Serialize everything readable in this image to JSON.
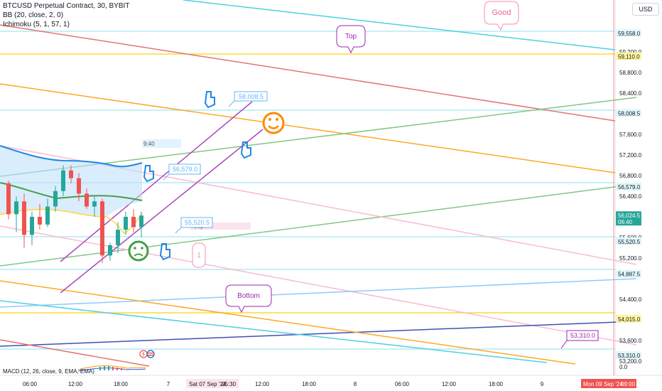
{
  "header": {
    "symbol_line": "BTCUSD Perpetual Contract, 30, BYBIT",
    "bb_line": "BB (20, close, 2, 0)",
    "ichimoku_line": "Ichimoku (5, 1, 57, 1)",
    "currency_button": "USD"
  },
  "macd": {
    "label": "MACD (12, 26, close, 9, EMA, EMA)",
    "zero_label": "0.0"
  },
  "annotations": {
    "good": "Good",
    "top": "Top",
    "bottom": "Bottom",
    "one": "1",
    "gap": "Gap",
    "time_note": "9:40",
    "callout_58008": "58,008.5",
    "callout_56579": "56,579.0",
    "callout_55520": "55,520.5",
    "callout_53310": "53,310.0"
  },
  "colors": {
    "cyan": "#4dd0e1",
    "red": "#e57373",
    "yellow": "#fdd835",
    "orange": "#ffa726",
    "green": "#81c784",
    "purple": "#ab47bc",
    "pink": "#f8bbd0",
    "blue": "#90caf9",
    "navy": "#3f51b5",
    "bb_line": "#1e88e5",
    "bb_fill": "#bbdefb",
    "candle_up": "#26a69a",
    "candle_down": "#ef5350",
    "callout_blue": "#64b5f6",
    "callout_purple": "#9c27b0",
    "price_badge": "#26a69a"
  },
  "chart_data": {
    "type": "candlestick",
    "symbol": "BTCUSD Perpetual Contract",
    "interval": "30",
    "exchange": "BYBIT",
    "y_axis_ticks": [
      "59,200.0",
      "58,800.0",
      "58,400.0",
      "57,600.0",
      "57,200.0",
      "56,800.0",
      "56,400.0",
      "55,600.0",
      "55,200.0",
      "54,400.0",
      "53,600.0",
      "53,200.0"
    ],
    "y_axis_values": [
      59200,
      58800,
      58400,
      57600,
      57200,
      56800,
      56400,
      55600,
      55200,
      54400,
      53600,
      53200
    ],
    "ylim": [
      52800,
      59900
    ],
    "price_labels": [
      {
        "text": "59,558.0",
        "value": 59558,
        "style": "cyan"
      },
      {
        "text": "59,110.0",
        "value": 59110,
        "style": "yellow"
      },
      {
        "text": "58,008.5",
        "value": 58008.5,
        "style": "cyan"
      },
      {
        "text": "56,579.0",
        "value": 56579,
        "style": "cyan"
      },
      {
        "text": "56,024.5",
        "value": 56024.5,
        "sub": "06:40",
        "style": "current"
      },
      {
        "text": "55,520.5",
        "value": 55520.5,
        "style": "cyan"
      },
      {
        "text": "54,887.5",
        "value": 54887.5,
        "style": "cyan"
      },
      {
        "text": "54,015.0",
        "value": 54015,
        "style": "yellow"
      },
      {
        "text": "53,310.0",
        "value": 53310,
        "style": "cyan"
      }
    ],
    "x_axis_ticks": [
      "06:00",
      "12:00",
      "18:00",
      "7",
      "12:00",
      "18:00",
      "8",
      "06:00",
      "12:00",
      "18:00",
      "9"
    ],
    "x_axis_highlights": [
      "Sat 07 Sep '24",
      "05:30",
      "Mon 09 Sep '24",
      "09:00"
    ],
    "candles": [
      {
        "o": 56650,
        "h": 56700,
        "l": 55950,
        "c": 56050
      },
      {
        "o": 56050,
        "h": 56400,
        "l": 55700,
        "c": 56300
      },
      {
        "o": 56300,
        "h": 56450,
        "l": 55400,
        "c": 55650
      },
      {
        "o": 55650,
        "h": 56100,
        "l": 55450,
        "c": 56000
      },
      {
        "o": 56000,
        "h": 56250,
        "l": 55750,
        "c": 55850
      },
      {
        "o": 55850,
        "h": 56350,
        "l": 55800,
        "c": 56200
      },
      {
        "o": 56200,
        "h": 56600,
        "l": 56100,
        "c": 56500
      },
      {
        "o": 56500,
        "h": 57000,
        "l": 56400,
        "c": 56900
      },
      {
        "o": 56900,
        "h": 57000,
        "l": 56650,
        "c": 56750
      },
      {
        "o": 56750,
        "h": 56850,
        "l": 56300,
        "c": 56450
      },
      {
        "o": 56450,
        "h": 56550,
        "l": 56150,
        "c": 56200
      },
      {
        "o": 56200,
        "h": 56400,
        "l": 56000,
        "c": 56300
      },
      {
        "o": 56300,
        "h": 56350,
        "l": 55100,
        "c": 55250
      },
      {
        "o": 55250,
        "h": 55500,
        "l": 55150,
        "c": 55450
      },
      {
        "o": 55450,
        "h": 55900,
        "l": 55300,
        "c": 55750
      },
      {
        "o": 55750,
        "h": 56100,
        "l": 55650,
        "c": 56000
      },
      {
        "o": 56000,
        "h": 56150,
        "l": 55700,
        "c": 55800
      },
      {
        "o": 55800,
        "h": 56100,
        "l": 55600,
        "c": 56025
      }
    ]
  }
}
